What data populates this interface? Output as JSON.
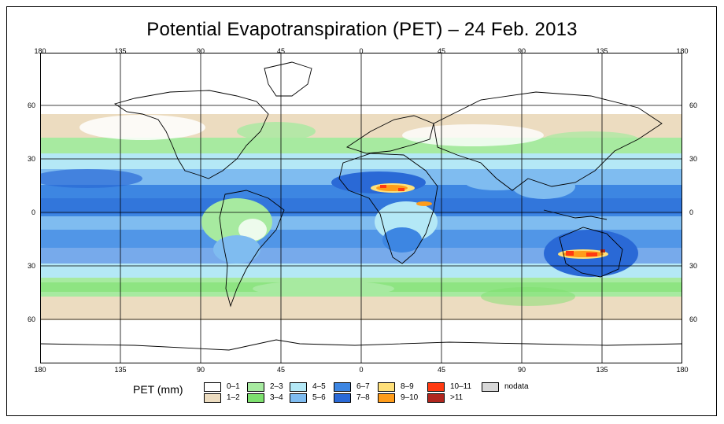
{
  "title": "Potential Evapotranspiration (PET) – 24 Feb. 2013",
  "map": {
    "lon_labels": [
      "180",
      "135",
      "90",
      "45",
      "0",
      "45",
      "90",
      "135",
      "180"
    ],
    "lat_labels": [
      "60",
      "30",
      "0",
      "30",
      "60"
    ]
  },
  "legend": {
    "title": "PET (mm)",
    "items": [
      {
        "label": "0–1",
        "color": "#ffffff"
      },
      {
        "label": "1–2",
        "color": "#ecdcc0"
      },
      {
        "label": "2–3",
        "color": "#a7eaa0"
      },
      {
        "label": "3–4",
        "color": "#7de06e"
      },
      {
        "label": "4–5",
        "color": "#b4e8f6"
      },
      {
        "label": "5–6",
        "color": "#7fbcf0"
      },
      {
        "label": "6–7",
        "color": "#3d86e2"
      },
      {
        "label": "7–8",
        "color": "#2a69d6"
      },
      {
        "label": "8–9",
        "color": "#ffe07a"
      },
      {
        "label": "9–10",
        "color": "#ff9c1a"
      },
      {
        "label": "10–11",
        "color": "#ff3a12"
      },
      {
        "label": ">11",
        "color": "#b0261e"
      },
      {
        "label": "nodata",
        "color": "#d8d8d8"
      }
    ]
  }
}
